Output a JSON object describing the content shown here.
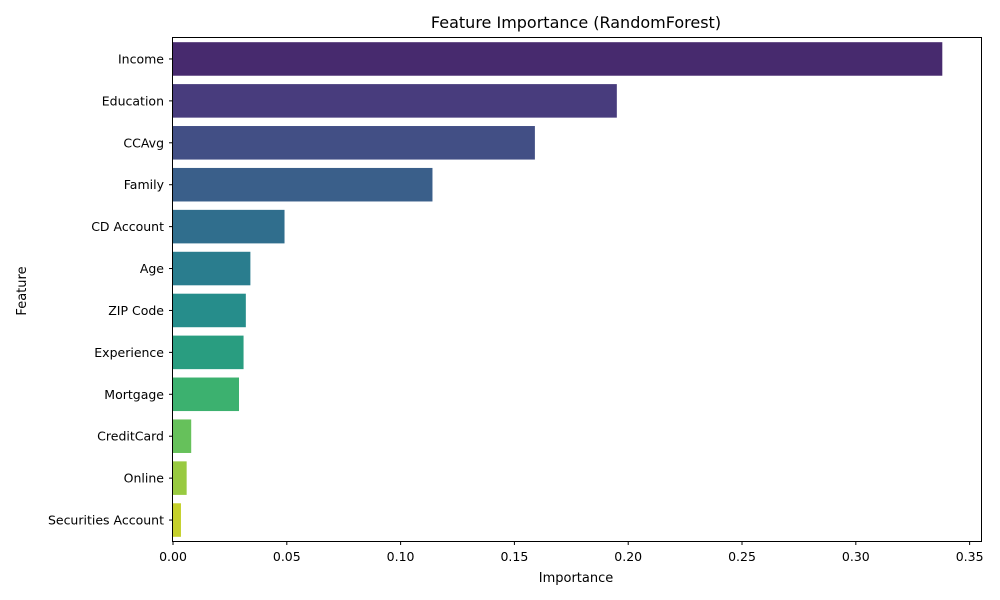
{
  "chart_data": {
    "type": "bar",
    "orientation": "horizontal",
    "title": "Feature Importance (RandomForest)",
    "xlabel": "Importance",
    "ylabel": "Feature",
    "xlim": [
      0,
      0.355
    ],
    "xticks": [
      0.0,
      0.05,
      0.1,
      0.15,
      0.2,
      0.25,
      0.3,
      0.35
    ],
    "xtick_labels": [
      "0.00",
      "0.05",
      "0.10",
      "0.15",
      "0.20",
      "0.25",
      "0.30",
      "0.35"
    ],
    "grid": false,
    "categories": [
      "Income",
      "Education",
      "CCAvg",
      "Family",
      "CD Account",
      "Age",
      "ZIP Code",
      "Experience",
      "Mortgage",
      "CreditCard",
      "Online",
      "Securities Account"
    ],
    "values": [
      0.338,
      0.195,
      0.159,
      0.114,
      0.049,
      0.034,
      0.032,
      0.031,
      0.029,
      0.008,
      0.006,
      0.0035
    ],
    "colors": [
      "#472a6e",
      "#483c7d",
      "#424f85",
      "#3a5f8a",
      "#306e8d",
      "#2a7d8e",
      "#268d8b",
      "#299d80",
      "#3cb16f",
      "#66c15b",
      "#98ca40",
      "#c5d02b"
    ]
  }
}
